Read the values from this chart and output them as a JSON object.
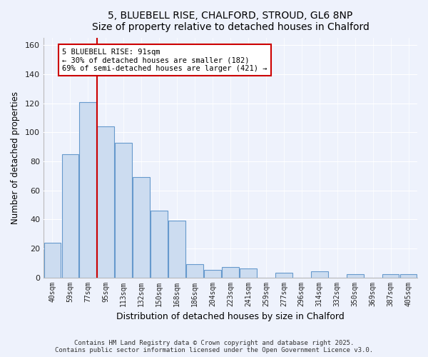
{
  "title": "5, BLUEBELL RISE, CHALFORD, STROUD, GL6 8NP",
  "subtitle": "Size of property relative to detached houses in Chalford",
  "xlabel": "Distribution of detached houses by size in Chalford",
  "ylabel": "Number of detached properties",
  "categories": [
    "40sqm",
    "59sqm",
    "77sqm",
    "95sqm",
    "113sqm",
    "132sqm",
    "150sqm",
    "168sqm",
    "186sqm",
    "204sqm",
    "223sqm",
    "241sqm",
    "259sqm",
    "277sqm",
    "296sqm",
    "314sqm",
    "332sqm",
    "350sqm",
    "369sqm",
    "387sqm",
    "405sqm"
  ],
  "values": [
    24,
    85,
    121,
    104,
    93,
    69,
    46,
    39,
    9,
    5,
    7,
    6,
    0,
    3,
    0,
    4,
    0,
    2,
    0,
    2,
    2
  ],
  "bar_color": "#ccdcf0",
  "bar_edge_color": "#6699cc",
  "vline_color": "#cc0000",
  "vline_x": 2.5,
  "annotation_text": "5 BLUEBELL RISE: 91sqm\n← 30% of detached houses are smaller (182)\n69% of semi-detached houses are larger (421) →",
  "annotation_box_color": "#ffffff",
  "annotation_box_edge": "#cc0000",
  "ylim": [
    0,
    165
  ],
  "yticks": [
    0,
    20,
    40,
    60,
    80,
    100,
    120,
    140,
    160
  ],
  "bg_color": "#eef2fc",
  "grid_color": "#ffffff",
  "footer1": "Contains HM Land Registry data © Crown copyright and database right 2025.",
  "footer2": "Contains public sector information licensed under the Open Government Licence v3.0."
}
